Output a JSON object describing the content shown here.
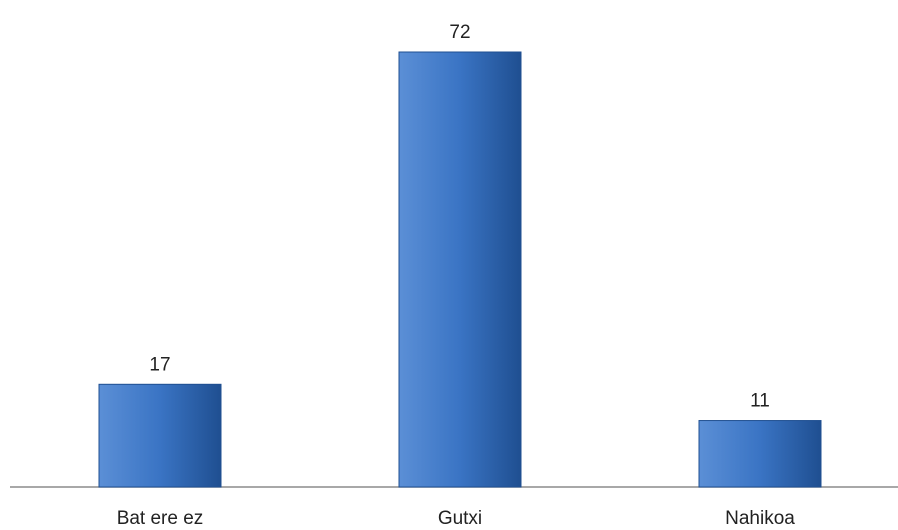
{
  "chart_data": {
    "type": "bar",
    "categories": [
      "Bat ere ez",
      "Gutxi",
      "Nahikoa"
    ],
    "values": [
      17,
      72,
      11
    ],
    "title": "",
    "xlabel": "",
    "ylabel": "",
    "ylim": [
      0,
      72
    ],
    "grid": false,
    "legend": "none",
    "data_labels": true,
    "colors": {
      "bar_light": "#5b8fd6",
      "bar_mid": "#3a74c4",
      "bar_dark": "#1f4f91",
      "axis": "#8c8c8c",
      "text": "#222222"
    }
  }
}
